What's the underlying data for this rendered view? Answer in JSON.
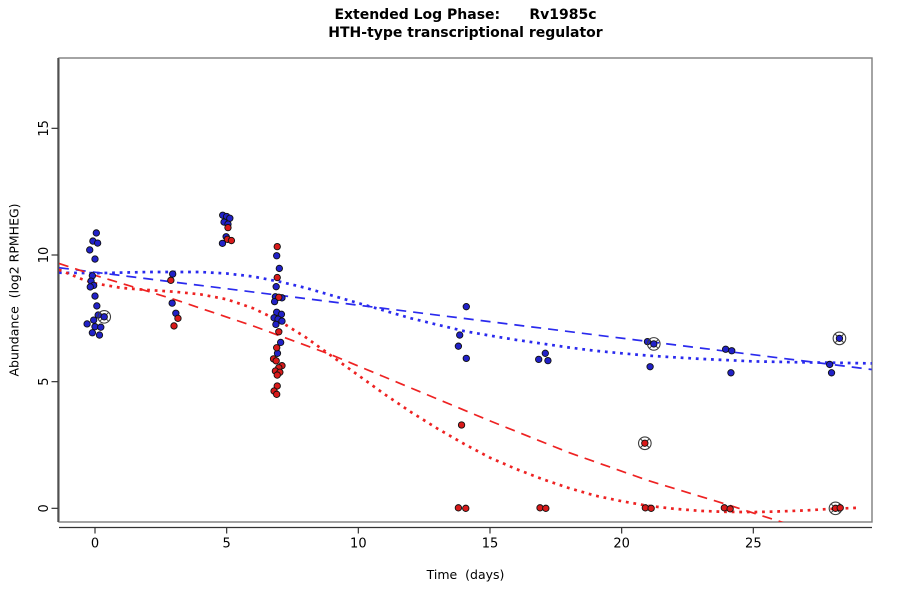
{
  "chart_data": {
    "type": "scatter",
    "title_line1": "Extended Log Phase:      Rv1985c",
    "title_line2": "HTH-type transcriptional regulator",
    "xlabel": "Time  (days)",
    "ylabel": "Abundance  (log2 RPMHEG)",
    "x_ticks": [
      0,
      5,
      10,
      15,
      20,
      25
    ],
    "y_ticks": [
      0,
      5,
      10,
      15
    ],
    "xlim": [
      -1.37,
      29.5
    ],
    "ylim": [
      -0.54,
      17.78
    ],
    "grid": false,
    "legend": "none",
    "frame_color": "#7d7d7d",
    "axis_color": "#333333",
    "series": [
      {
        "name": "blue-replicates",
        "color": "#2121C8",
        "marker": "filled-circle",
        "points": [
          [
            0.05,
            10.87
          ],
          [
            -0.08,
            10.55
          ],
          [
            0.1,
            10.47
          ],
          [
            -0.2,
            10.2
          ],
          [
            0.0,
            9.84
          ],
          [
            -0.1,
            9.18
          ],
          [
            -0.15,
            8.97
          ],
          [
            -0.05,
            8.8
          ],
          [
            -0.18,
            8.74
          ],
          [
            0.0,
            8.38
          ],
          [
            0.07,
            7.99
          ],
          [
            0.12,
            7.63
          ],
          [
            0.35,
            7.56,
            1
          ],
          [
            -0.05,
            7.43
          ],
          [
            -0.3,
            7.28
          ],
          [
            0.0,
            7.17
          ],
          [
            0.22,
            7.15
          ],
          [
            -0.1,
            6.93
          ],
          [
            0.17,
            6.84
          ],
          [
            2.95,
            9.25
          ],
          [
            2.93,
            8.1
          ],
          [
            3.07,
            7.7
          ],
          [
            4.85,
            11.57
          ],
          [
            5.0,
            11.52
          ],
          [
            5.12,
            11.45
          ],
          [
            4.9,
            11.3
          ],
          [
            5.05,
            11.22
          ],
          [
            4.98,
            10.72
          ],
          [
            4.84,
            10.46
          ],
          [
            6.9,
            9.97
          ],
          [
            7.0,
            9.47
          ],
          [
            6.88,
            8.75
          ],
          [
            6.85,
            8.35
          ],
          [
            7.1,
            8.31
          ],
          [
            6.82,
            8.16
          ],
          [
            6.9,
            7.74
          ],
          [
            7.08,
            7.66
          ],
          [
            6.8,
            7.52
          ],
          [
            6.95,
            7.47
          ],
          [
            7.1,
            7.39
          ],
          [
            6.87,
            7.26
          ],
          [
            7.05,
            6.55
          ],
          [
            6.93,
            6.12
          ],
          [
            14.1,
            7.96
          ],
          [
            13.85,
            6.84
          ],
          [
            13.8,
            6.4
          ],
          [
            14.1,
            5.92
          ],
          [
            17.1,
            6.12
          ],
          [
            16.85,
            5.88
          ],
          [
            17.2,
            5.83
          ],
          [
            20.98,
            6.58
          ],
          [
            21.22,
            6.49,
            1
          ],
          [
            21.08,
            5.59
          ],
          [
            23.95,
            6.28
          ],
          [
            24.18,
            6.22
          ],
          [
            24.15,
            5.35
          ],
          [
            28.27,
            6.71,
            1
          ],
          [
            27.9,
            5.68
          ],
          [
            27.97,
            5.35
          ]
        ]
      },
      {
        "name": "red-replicates",
        "color": "#D91A1A",
        "marker": "filled-circle",
        "points": [
          [
            2.88,
            9.0
          ],
          [
            3.15,
            7.5
          ],
          [
            3.0,
            7.2
          ],
          [
            5.05,
            11.08
          ],
          [
            5.03,
            10.62
          ],
          [
            5.18,
            10.57
          ],
          [
            6.92,
            10.33
          ],
          [
            6.92,
            9.11
          ],
          [
            6.98,
            8.33
          ],
          [
            6.98,
            6.97
          ],
          [
            6.9,
            6.34
          ],
          [
            6.78,
            5.9
          ],
          [
            6.88,
            5.82
          ],
          [
            7.1,
            5.63
          ],
          [
            6.98,
            5.55
          ],
          [
            6.85,
            5.42
          ],
          [
            7.02,
            5.37
          ],
          [
            6.92,
            5.26
          ],
          [
            6.92,
            4.83
          ],
          [
            6.8,
            4.63
          ],
          [
            6.9,
            4.5
          ],
          [
            13.92,
            3.29
          ],
          [
            13.8,
            0.02
          ],
          [
            14.08,
            0.0
          ],
          [
            16.9,
            0.02
          ],
          [
            17.12,
            0.0
          ],
          [
            20.88,
            2.57,
            1
          ],
          [
            20.9,
            0.02
          ],
          [
            21.12,
            0.0
          ],
          [
            23.9,
            0.02
          ],
          [
            24.12,
            -0.02
          ],
          [
            28.12,
            0.0,
            1
          ],
          [
            28.3,
            0.02
          ]
        ]
      }
    ],
    "curves": [
      {
        "name": "blue-linear-fit",
        "color": "#2A2AEE",
        "style": "dashed",
        "points": [
          [
            -1.37,
            9.5
          ],
          [
            29.5,
            5.48
          ]
        ]
      },
      {
        "name": "blue-loess-fit",
        "color": "#2A2AEE",
        "style": "dotted",
        "points": [
          [
            -1.37,
            9.3
          ],
          [
            0,
            9.28
          ],
          [
            2,
            9.33
          ],
          [
            4,
            9.33
          ],
          [
            5,
            9.27
          ],
          [
            6,
            9.15
          ],
          [
            7,
            8.95
          ],
          [
            8,
            8.7
          ],
          [
            9,
            8.4
          ],
          [
            10,
            8.1
          ],
          [
            11,
            7.8
          ],
          [
            12,
            7.5
          ],
          [
            13,
            7.25
          ],
          [
            14,
            7.0
          ],
          [
            15,
            6.82
          ],
          [
            16,
            6.65
          ],
          [
            17,
            6.5
          ],
          [
            18,
            6.35
          ],
          [
            19,
            6.22
          ],
          [
            20,
            6.12
          ],
          [
            21,
            6.03
          ],
          [
            22,
            5.96
          ],
          [
            23,
            5.9
          ],
          [
            24,
            5.85
          ],
          [
            25,
            5.8
          ],
          [
            26,
            5.78
          ],
          [
            27,
            5.76
          ],
          [
            28,
            5.75
          ],
          [
            29.5,
            5.72
          ]
        ]
      },
      {
        "name": "red-linear-fit",
        "color": "#EE2222",
        "style": "dashed",
        "points": [
          [
            -1.37,
            9.67
          ],
          [
            0,
            9.2
          ],
          [
            3,
            8.25
          ],
          [
            6,
            7.2
          ],
          [
            9,
            6.05
          ],
          [
            12,
            4.75
          ],
          [
            15,
            3.45
          ],
          [
            18,
            2.2
          ],
          [
            21,
            1.1
          ],
          [
            24,
            0.15
          ],
          [
            26.3,
            -0.62
          ]
        ]
      },
      {
        "name": "red-loess-fit",
        "color": "#EE2222",
        "style": "dotted",
        "points": [
          [
            -1.37,
            9.42
          ],
          [
            -0.5,
            9.05
          ],
          [
            0,
            8.88
          ],
          [
            1,
            8.7
          ],
          [
            2,
            8.62
          ],
          [
            3,
            8.55
          ],
          [
            4,
            8.45
          ],
          [
            5,
            8.25
          ],
          [
            6,
            7.9
          ],
          [
            7,
            7.4
          ],
          [
            8,
            6.75
          ],
          [
            9,
            6.0
          ],
          [
            10,
            5.25
          ],
          [
            11,
            4.5
          ],
          [
            12,
            3.8
          ],
          [
            13,
            3.15
          ],
          [
            14,
            2.55
          ],
          [
            15,
            2.0
          ],
          [
            16,
            1.55
          ],
          [
            17,
            1.15
          ],
          [
            18,
            0.8
          ],
          [
            19,
            0.5
          ],
          [
            20,
            0.28
          ],
          [
            21,
            0.1
          ],
          [
            22,
            -0.02
          ],
          [
            23,
            -0.1
          ],
          [
            24,
            -0.14
          ],
          [
            25,
            -0.15
          ],
          [
            26,
            -0.12
          ],
          [
            27,
            -0.08
          ],
          [
            28,
            -0.02
          ],
          [
            29,
            0.02
          ]
        ]
      }
    ]
  }
}
